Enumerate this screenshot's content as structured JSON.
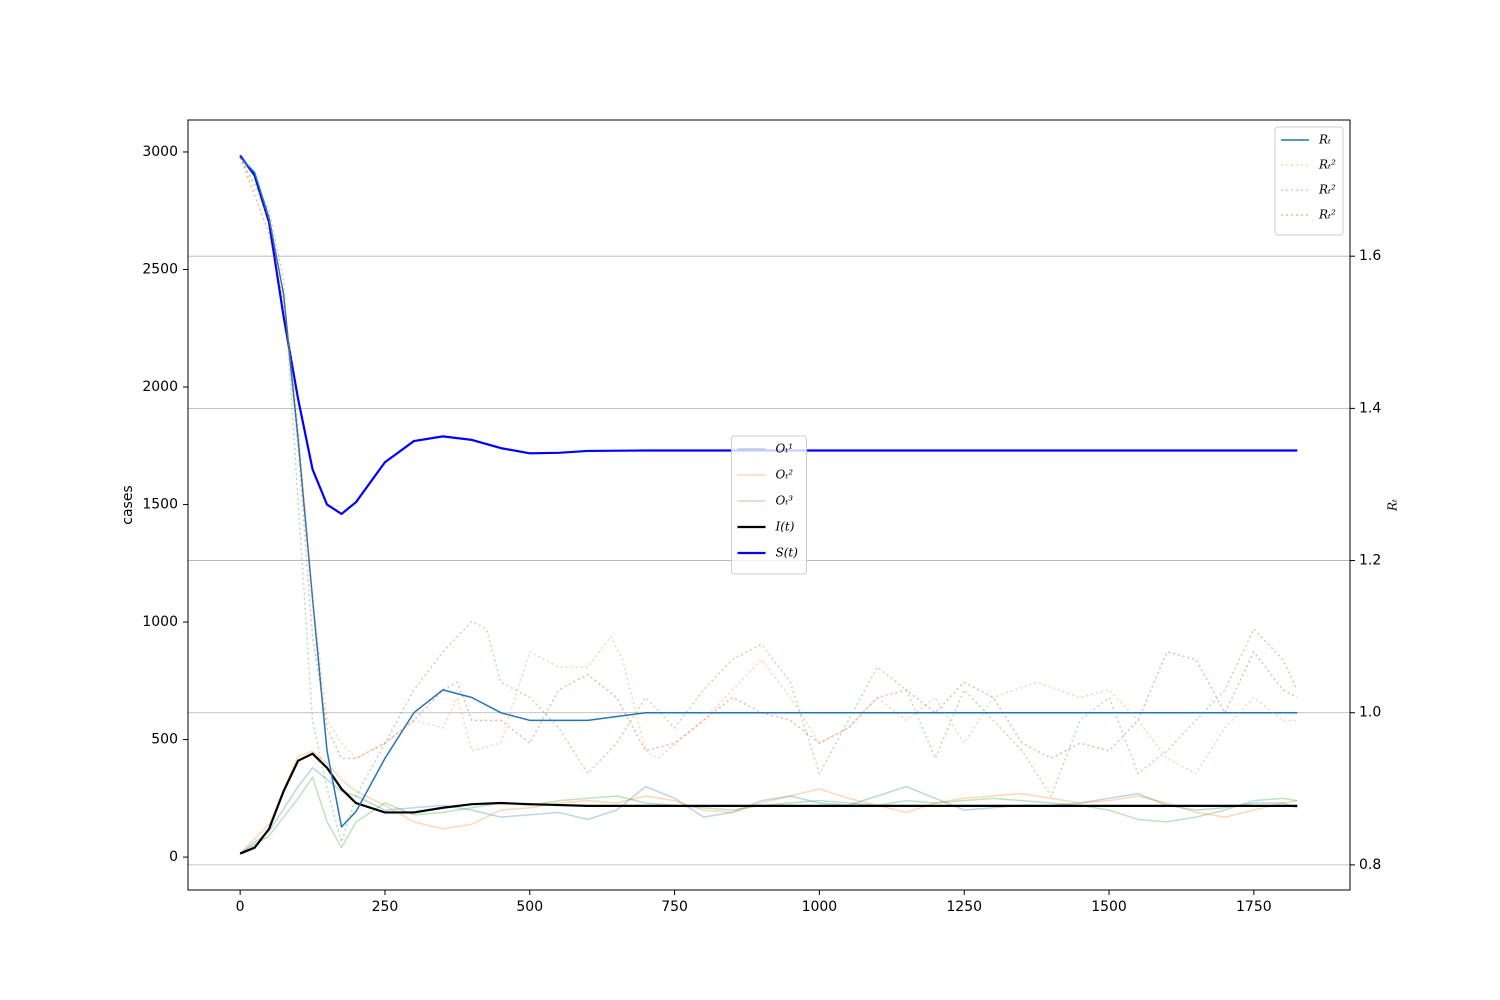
{
  "chart_data": {
    "type": "line",
    "ylabel": "cases",
    "y2label": "Rₜ",
    "xlim": [
      -90,
      1916
    ],
    "xticks": [
      0,
      250,
      500,
      750,
      1000,
      1250,
      1500,
      1750
    ],
    "ylim": [
      -140,
      3136
    ],
    "yticks": [
      0,
      500,
      1000,
      1500,
      2000,
      2500,
      3000
    ],
    "y2lim": [
      0.767,
      1.779
    ],
    "y2ticks": [
      0.8,
      {
        "value": 1,
        "label": "1.0"
      },
      1.2,
      1.4,
      1.6
    ],
    "grid": "y2",
    "legend": "center",
    "legend2": "upper right",
    "series": [
      {
        "name": "Oₜ¹",
        "color": "#1f77b4",
        "alpha": 0.3,
        "width": 1.5,
        "linestyle": "solid",
        "x": [
          0,
          50,
          100,
          125,
          150,
          175,
          200,
          250,
          300,
          350,
          400,
          450,
          500,
          550,
          600,
          650,
          700,
          750,
          800,
          850,
          900,
          950,
          1000,
          1050,
          1100,
          1150,
          1200,
          1250,
          1300,
          1350,
          1400,
          1450,
          1500,
          1550,
          1600,
          1650,
          1700,
          1750,
          1800,
          1825
        ],
        "values": [
          15,
          110,
          300,
          380,
          330,
          280,
          260,
          200,
          210,
          220,
          200,
          170,
          180,
          190,
          160,
          200,
          300,
          250,
          170,
          190,
          240,
          260,
          230,
          220,
          260,
          300,
          250,
          200,
          210,
          220,
          220,
          230,
          250,
          270,
          220,
          200,
          210,
          230,
          230,
          210
        ]
      },
      {
        "name": "Oₜ²",
        "color": "#ff7f0e",
        "alpha": 0.3,
        "width": 1.5,
        "linestyle": "solid",
        "x": [
          0,
          50,
          100,
          125,
          150,
          175,
          200,
          250,
          300,
          350,
          400,
          450,
          500,
          550,
          600,
          650,
          700,
          750,
          800,
          850,
          900,
          950,
          1000,
          1050,
          1100,
          1150,
          1200,
          1250,
          1300,
          1350,
          1400,
          1450,
          1500,
          1550,
          1600,
          1650,
          1700,
          1750,
          1800,
          1825
        ],
        "values": [
          15,
          140,
          430,
          450,
          400,
          330,
          280,
          220,
          150,
          120,
          140,
          200,
          210,
          230,
          240,
          230,
          260,
          240,
          200,
          190,
          230,
          260,
          290,
          250,
          220,
          190,
          230,
          250,
          260,
          270,
          250,
          230,
          240,
          260,
          230,
          190,
          170,
          200,
          230,
          240
        ]
      },
      {
        "name": "Oₜ³",
        "color": "#2ca02c",
        "alpha": 0.3,
        "width": 1.5,
        "linestyle": "solid",
        "x": [
          0,
          50,
          100,
          125,
          150,
          175,
          200,
          250,
          300,
          350,
          400,
          450,
          500,
          550,
          600,
          650,
          700,
          750,
          800,
          850,
          900,
          950,
          1000,
          1050,
          1100,
          1150,
          1200,
          1250,
          1300,
          1350,
          1400,
          1450,
          1500,
          1550,
          1600,
          1650,
          1700,
          1750,
          1800,
          1825
        ],
        "values": [
          15,
          90,
          250,
          340,
          150,
          40,
          150,
          230,
          180,
          190,
          210,
          230,
          220,
          240,
          250,
          260,
          230,
          220,
          210,
          200,
          220,
          230,
          240,
          230,
          220,
          240,
          230,
          240,
          250,
          240,
          230,
          220,
          200,
          160,
          150,
          170,
          200,
          240,
          250,
          240
        ]
      },
      {
        "name": "I(t)",
        "color": "#000000",
        "alpha": 1,
        "width": 2.2,
        "linestyle": "solid",
        "x": [
          0,
          25,
          50,
          75,
          100,
          125,
          150,
          175,
          200,
          250,
          300,
          350,
          400,
          450,
          500,
          600,
          700,
          800,
          1825
        ],
        "values": [
          15,
          40,
          120,
          280,
          410,
          440,
          380,
          290,
          230,
          190,
          190,
          210,
          225,
          230,
          225,
          218,
          218,
          218,
          218
        ]
      },
      {
        "name": "S(t)",
        "color": "#0000ff",
        "alpha": 1,
        "width": 2.2,
        "linestyle": "solid",
        "x": [
          0,
          25,
          50,
          75,
          100,
          125,
          150,
          175,
          200,
          250,
          300,
          350,
          400,
          450,
          500,
          550,
          600,
          700,
          800,
          1825
        ],
        "values": [
          2985,
          2900,
          2700,
          2300,
          1950,
          1650,
          1500,
          1460,
          1510,
          1680,
          1770,
          1790,
          1775,
          1740,
          1718,
          1720,
          1728,
          1730,
          1730,
          1730
        ]
      },
      {
        "name": "Rₜ",
        "color": "#1f77b4",
        "alpha": 1,
        "width": 1.5,
        "linestyle": "solid",
        "axis": "y2",
        "x": [
          0,
          25,
          50,
          75,
          100,
          125,
          150,
          175,
          200,
          250,
          300,
          350,
          400,
          450,
          500,
          550,
          600,
          700,
          800,
          1000,
          1825
        ],
        "values": [
          1.73,
          1.71,
          1.65,
          1.55,
          1.36,
          1.15,
          0.95,
          0.85,
          0.87,
          0.94,
          1.0,
          1.03,
          1.02,
          1.0,
          0.99,
          0.99,
          0.99,
          1.0,
          1.0,
          1.0,
          1.0
        ]
      },
      {
        "name": "Rₜ²",
        "color": "#ff7f0e",
        "alpha": 0.35,
        "width": 1.5,
        "linestyle": "dotted",
        "axis": "y2",
        "x": [
          0,
          50,
          75,
          100,
          125,
          150,
          175,
          200,
          250,
          300,
          350,
          375,
          400,
          450,
          500,
          550,
          600,
          640,
          660,
          700,
          720,
          800,
          900,
          950,
          1000,
          1050,
          1100,
          1150,
          1200,
          1250,
          1300,
          1375,
          1450,
          1500,
          1550,
          1600,
          1650,
          1700,
          1750,
          1800,
          1825
        ],
        "values": [
          1.73,
          1.65,
          1.55,
          1.38,
          1.15,
          0.99,
          0.96,
          0.94,
          0.96,
          0.99,
          0.98,
          1.02,
          0.95,
          0.96,
          1.08,
          1.06,
          1.06,
          1.1,
          1.07,
          0.95,
          0.94,
          0.99,
          1.07,
          1.02,
          0.96,
          0.98,
          1.02,
          0.99,
          1.02,
          0.96,
          1.02,
          1.04,
          1.02,
          1.03,
          0.99,
          0.94,
          0.92,
          0.98,
          1.02,
          0.99,
          0.99
        ]
      },
      {
        "name": "Rₜ²",
        "color": "#2ca02c",
        "alpha": 0.35,
        "width": 1.5,
        "linestyle": "dotted",
        "axis": "y2",
        "x": [
          0,
          50,
          75,
          100,
          125,
          150,
          175,
          200,
          250,
          300,
          350,
          400,
          425,
          450,
          500,
          550,
          600,
          650,
          700,
          750,
          800,
          850,
          900,
          950,
          1000,
          1050,
          1100,
          1150,
          1200,
          1250,
          1300,
          1350,
          1400,
          1450,
          1500,
          1550,
          1600,
          1650,
          1700,
          1750,
          1800,
          1825
        ],
        "values": [
          1.73,
          1.66,
          1.57,
          1.28,
          0.99,
          0.9,
          0.83,
          0.89,
          0.96,
          1.03,
          1.08,
          1.12,
          1.11,
          1.04,
          1.02,
          0.98,
          0.92,
          0.96,
          1.02,
          0.98,
          1.03,
          1.07,
          1.09,
          1.04,
          0.92,
          0.99,
          1.06,
          1.03,
          0.94,
          1.03,
          0.99,
          0.95,
          0.89,
          0.99,
          1.02,
          0.92,
          0.95,
          0.99,
          1.03,
          1.11,
          1.07,
          1.03
        ]
      },
      {
        "name": "Rₜ²",
        "color": "#d62728",
        "alpha": 0.35,
        "width": 1.5,
        "linestyle": "dotted",
        "axis": "y2",
        "x": [
          0,
          50,
          75,
          100,
          125,
          150,
          175,
          200,
          250,
          300,
          350,
          375,
          400,
          450,
          500,
          550,
          600,
          650,
          700,
          750,
          800,
          850,
          900,
          950,
          1000,
          1050,
          1100,
          1150,
          1200,
          1250,
          1300,
          1350,
          1400,
          1450,
          1500,
          1550,
          1600,
          1650,
          1700,
          1750,
          1800,
          1825
        ],
        "values": [
          1.73,
          1.63,
          1.54,
          1.35,
          1.1,
          0.98,
          0.94,
          0.94,
          0.96,
          0.99,
          1.03,
          1.04,
          0.99,
          0.99,
          0.96,
          1.03,
          1.05,
          1.02,
          0.95,
          0.96,
          0.99,
          1.02,
          1.0,
          0.99,
          0.96,
          0.98,
          1.02,
          1.03,
          1.0,
          1.04,
          1.02,
          0.96,
          0.94,
          0.96,
          0.95,
          0.99,
          1.08,
          1.07,
          1.0,
          1.08,
          1.03,
          1.02
        ]
      }
    ]
  }
}
